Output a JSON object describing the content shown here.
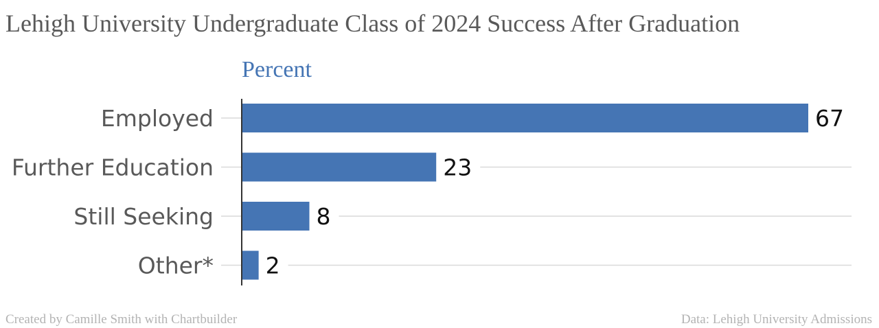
{
  "chart_data": {
    "type": "bar",
    "orientation": "horizontal",
    "title": "Lehigh University Undergraduate Class of 2024 Success After Graduation",
    "unit_label": "Percent",
    "categories": [
      "Employed",
      "Further Education",
      "Still Seeking",
      "Other*"
    ],
    "values": [
      67,
      23,
      8,
      2
    ],
    "xlim": [
      0,
      70
    ],
    "grid": true,
    "bar_color": "#4575b4"
  },
  "footer": {
    "credit": "Created by Camille Smith with Chartbuilder",
    "source": "Data: Lehigh University Admissions"
  }
}
